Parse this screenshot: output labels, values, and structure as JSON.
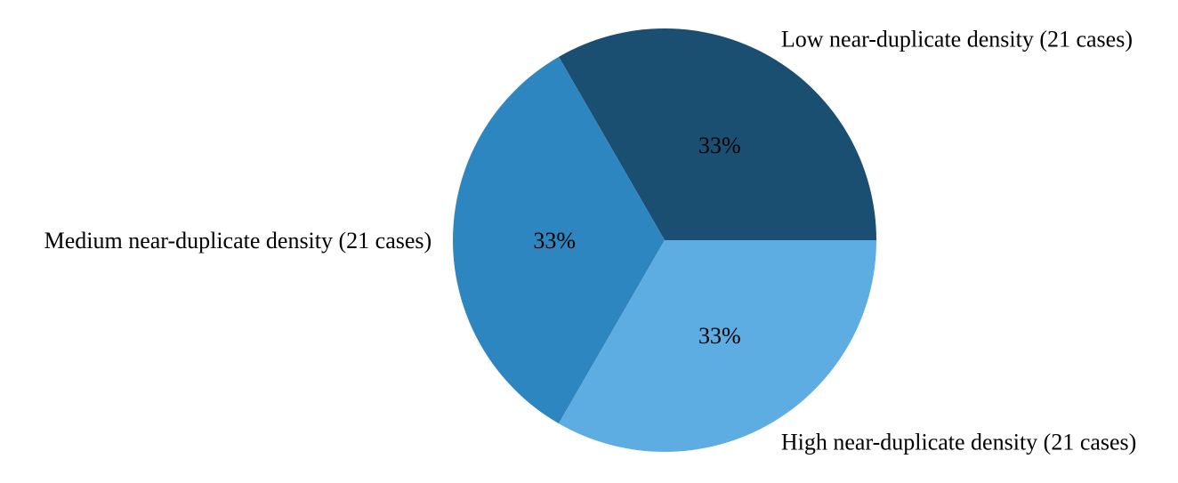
{
  "chart_data": {
    "type": "pie",
    "slices": [
      {
        "label": "Low near-duplicate density (21 cases)",
        "value": 21,
        "pct_label": "33%",
        "color": "#1b4f72"
      },
      {
        "label": "Medium near-duplicate density (21 cases)",
        "value": 21,
        "pct_label": "33%",
        "color": "#2e86c1"
      },
      {
        "label": "High near-duplicate density (21 cases)",
        "value": 21,
        "pct_label": "33%",
        "color": "#5dade2"
      }
    ],
    "start_angle_deg": 0,
    "direction": "counterclockwise",
    "legend": "none"
  }
}
